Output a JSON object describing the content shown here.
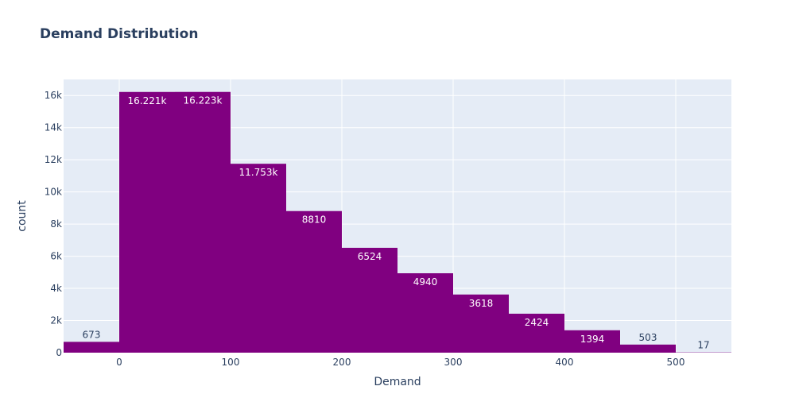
{
  "chart_data": {
    "type": "bar",
    "title": "Demand Distribution",
    "xlabel": "Demand",
    "ylabel": "count",
    "bin_edges": [
      -50,
      0,
      50,
      100,
      150,
      200,
      250,
      300,
      350,
      400,
      450,
      500,
      550
    ],
    "values": [
      673,
      16221,
      16223,
      11753,
      8810,
      6524,
      4940,
      3618,
      2424,
      1394,
      503,
      17
    ],
    "value_labels": [
      "673",
      "16.221k",
      "16.223k",
      "11.753k",
      "8810",
      "6524",
      "4940",
      "3618",
      "2424",
      "1394",
      "503",
      "17"
    ],
    "xlim": [
      -50,
      550
    ],
    "ylim": [
      0,
      17000
    ],
    "x_ticks": [
      0,
      100,
      200,
      300,
      400,
      500
    ],
    "x_tick_labels": [
      "0",
      "100",
      "200",
      "300",
      "400",
      "500"
    ],
    "y_ticks": [
      0,
      2000,
      4000,
      6000,
      8000,
      10000,
      12000,
      14000,
      16000
    ],
    "y_tick_labels": [
      "0",
      "2k",
      "4k",
      "6k",
      "8k",
      "10k",
      "12k",
      "14k",
      "16k"
    ],
    "grid": true,
    "bar_color": "#800080",
    "plot_background": "#e5ecf6",
    "grid_color": "#ffffff",
    "text_color": "#2a3f5f"
  }
}
